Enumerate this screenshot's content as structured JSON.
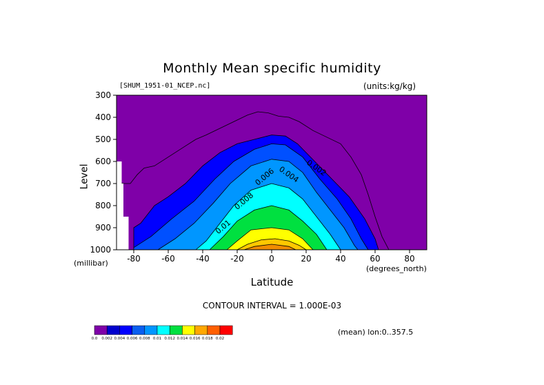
{
  "title": "Monthly Mean specific humidity",
  "file_label": "[SHUM_1951-01_NCEP.nc]",
  "units_label": "(units:kg/kg)",
  "contour_interval_label": "CONTOUR INTERVAL = 1.000E-03",
  "mean_note": "(mean) lon:0..357.5",
  "chart_data": {
    "type": "heatmap",
    "title": "Monthly Mean specific humidity",
    "xlabel": "Latitude",
    "xunit": "(degrees_north)",
    "ylabel": "Level",
    "yunit": "(millibar)",
    "xlim": [
      -90,
      90
    ],
    "ylim": [
      1000,
      300
    ],
    "x_ticks": [
      "-80",
      "-60",
      "-40",
      "-20",
      "0",
      "20",
      "40",
      "60",
      "80"
    ],
    "x_tick_values": [
      -80,
      -60,
      -40,
      -20,
      0,
      20,
      40,
      60,
      80
    ],
    "y_ticks": [
      "300",
      "400",
      "500",
      "600",
      "700",
      "800",
      "900",
      "1000"
    ],
    "y_tick_values": [
      300,
      400,
      500,
      600,
      700,
      800,
      900,
      1000
    ],
    "contour_labels": [
      {
        "text": "0.002",
        "x": 20,
        "y": 610
      },
      {
        "text": "0.004",
        "x": 4,
        "y": 640
      },
      {
        "text": "0.006",
        "x": -8,
        "y": 710
      },
      {
        "text": "0.008",
        "x": -20,
        "y": 820
      },
      {
        "text": "0.01",
        "x": -31,
        "y": 930
      }
    ],
    "contour_levels": [
      {
        "value": 0.002,
        "color": "#0000ff",
        "points": [
          [
            -80,
            900
          ],
          [
            -76,
            880
          ],
          [
            -68,
            800
          ],
          [
            -60,
            760
          ],
          [
            -50,
            700
          ],
          [
            -40,
            620
          ],
          [
            -30,
            560
          ],
          [
            -20,
            520
          ],
          [
            -10,
            500
          ],
          [
            0,
            480
          ],
          [
            8,
            485
          ],
          [
            15,
            520
          ],
          [
            25,
            600
          ],
          [
            35,
            680
          ],
          [
            45,
            760
          ],
          [
            54,
            860
          ],
          [
            60,
            950
          ],
          [
            62,
            1000
          ]
        ]
      },
      {
        "value": 0.003,
        "color": "#0050ff",
        "points": [
          [
            -80,
            990
          ],
          [
            -70,
            940
          ],
          [
            -58,
            860
          ],
          [
            -45,
            780
          ],
          [
            -33,
            680
          ],
          [
            -22,
            600
          ],
          [
            -10,
            545
          ],
          [
            0,
            520
          ],
          [
            8,
            525
          ],
          [
            18,
            580
          ],
          [
            28,
            680
          ],
          [
            38,
            770
          ],
          [
            46,
            860
          ],
          [
            52,
            950
          ],
          [
            56,
            1000
          ]
        ]
      },
      {
        "value": 0.004,
        "color": "#0096ff",
        "points": [
          [
            -66,
            1000
          ],
          [
            -56,
            950
          ],
          [
            -45,
            880
          ],
          [
            -34,
            790
          ],
          [
            -24,
            700
          ],
          [
            -12,
            620
          ],
          [
            0,
            590
          ],
          [
            10,
            600
          ],
          [
            18,
            650
          ],
          [
            26,
            740
          ],
          [
            34,
            820
          ],
          [
            42,
            900
          ],
          [
            48,
            980
          ],
          [
            50,
            1000
          ]
        ]
      },
      {
        "value": 0.006,
        "color": "#00ffff",
        "points": [
          [
            -44,
            1000
          ],
          [
            -38,
            960
          ],
          [
            -30,
            880
          ],
          [
            -22,
            800
          ],
          [
            -12,
            730
          ],
          [
            0,
            700
          ],
          [
            10,
            720
          ],
          [
            18,
            770
          ],
          [
            26,
            850
          ],
          [
            34,
            930
          ],
          [
            40,
            1000
          ]
        ]
      },
      {
        "value": 0.008,
        "color": "#00e040",
        "points": [
          [
            -36,
            1000
          ],
          [
            -28,
            940
          ],
          [
            -20,
            870
          ],
          [
            -10,
            820
          ],
          [
            0,
            800
          ],
          [
            10,
            820
          ],
          [
            18,
            870
          ],
          [
            26,
            930
          ],
          [
            32,
            1000
          ]
        ]
      },
      {
        "value": 0.012,
        "color": "#ffff00",
        "points": [
          [
            -26,
            1000
          ],
          [
            -20,
            960
          ],
          [
            -12,
            910
          ],
          [
            0,
            900
          ],
          [
            10,
            910
          ],
          [
            18,
            950
          ],
          [
            24,
            1000
          ]
        ]
      },
      {
        "value": 0.014,
        "color": "#ffc800",
        "points": [
          [
            -20,
            1000
          ],
          [
            -14,
            975
          ],
          [
            -6,
            955
          ],
          [
            2,
            950
          ],
          [
            10,
            960
          ],
          [
            16,
            980
          ],
          [
            20,
            1000
          ]
        ]
      },
      {
        "value": 0.016,
        "color": "#f08c00",
        "points": [
          [
            -16,
            1000
          ],
          [
            -10,
            985
          ],
          [
            0,
            975
          ],
          [
            10,
            985
          ],
          [
            14,
            1000
          ]
        ]
      }
    ],
    "line_contour": {
      "value": 0.001,
      "points": [
        [
          -90,
          690
        ],
        [
          -86,
          700
        ],
        [
          -82,
          700
        ],
        [
          -78,
          660
        ],
        [
          -74,
          630
        ],
        [
          -68,
          620
        ],
        [
          -62,
          590
        ],
        [
          -56,
          560
        ],
        [
          -50,
          530
        ],
        [
          -44,
          500
        ],
        [
          -38,
          480
        ],
        [
          -30,
          450
        ],
        [
          -22,
          420
        ],
        [
          -14,
          390
        ],
        [
          -8,
          375
        ],
        [
          -2,
          380
        ],
        [
          4,
          395
        ],
        [
          10,
          400
        ],
        [
          16,
          420
        ],
        [
          24,
          460
        ],
        [
          32,
          490
        ],
        [
          40,
          520
        ],
        [
          46,
          580
        ],
        [
          52,
          660
        ],
        [
          56,
          750
        ],
        [
          60,
          850
        ],
        [
          64,
          940
        ],
        [
          68,
          1000
        ]
      ]
    },
    "topography": {
      "color": "#ffffff",
      "points": [
        [
          -90,
          600
        ],
        [
          -87,
          600
        ],
        [
          -87,
          700
        ],
        [
          -86,
          700
        ],
        [
          -86,
          850
        ],
        [
          -83,
          850
        ],
        [
          -83,
          1000
        ],
        [
          -90,
          1000
        ]
      ]
    },
    "colorbar": {
      "colors": [
        "#7f00a8",
        "#0000cd",
        "#0000ff",
        "#0a5ff0",
        "#0096ff",
        "#00ffff",
        "#00e040",
        "#ffff00",
        "#ffa800",
        "#ff6000",
        "#ff0000"
      ],
      "labels": [
        "0.0",
        "0.002",
        "0.004",
        "0.006",
        "0.008",
        "0.01",
        "0.012",
        "0.014",
        "0.016",
        "0.018",
        "0.02"
      ]
    },
    "background_color": "#7f00a8"
  }
}
